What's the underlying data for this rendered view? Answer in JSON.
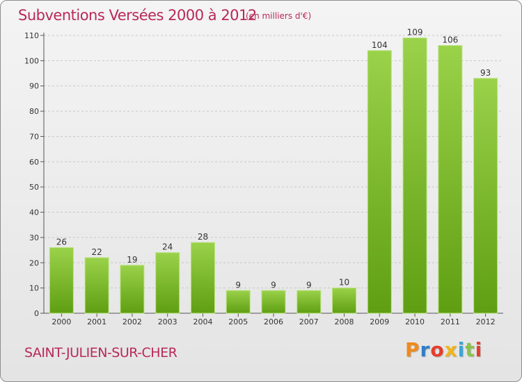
{
  "header": {
    "title": "Subventions Versées 2000 à 2012",
    "subtitle": "(en milliers d'€)"
  },
  "footer": {
    "commune": "SAINT-JULIEN-SUR-CHER",
    "logo": "Proxiti"
  },
  "colors": {
    "title": "#b8285a",
    "bar_top": "#9ad24a",
    "bar_bottom": "#5f9e12",
    "grid": "#c8c8c8",
    "logo_letters": [
      "#f08a1a",
      "#2e7fc9",
      "#e83c2c",
      "#f2b51a",
      "#3aa5d8",
      "#8bc34a",
      "#e83c2c"
    ]
  },
  "chart_data": {
    "type": "bar",
    "title": "Subventions Versées 2000 à 2012",
    "subtitle": "(en milliers d'€)",
    "xlabel": "",
    "ylabel": "",
    "categories": [
      "2000",
      "2001",
      "2002",
      "2003",
      "2004",
      "2005",
      "2006",
      "2007",
      "2008",
      "2009",
      "2010",
      "2011",
      "2012"
    ],
    "values": [
      26,
      22,
      19,
      24,
      28,
      9,
      9,
      9,
      10,
      104,
      109,
      106,
      93
    ],
    "ylim": [
      0,
      110
    ],
    "yticks": [
      0,
      10,
      20,
      30,
      40,
      50,
      60,
      70,
      80,
      90,
      100,
      110
    ],
    "grid": true,
    "legend": "none"
  }
}
